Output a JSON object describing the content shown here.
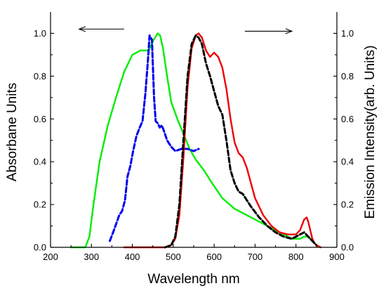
{
  "chart_data": {
    "type": "line",
    "xlabel": "Wavelength nm",
    "ylabel_left": "Absorbane Units",
    "ylabel_right": "Emission  Intensity(arb. Units)",
    "xlim": [
      200,
      900
    ],
    "ylim": [
      0.0,
      1.1
    ],
    "x_ticks": [
      "200",
      "300",
      "400",
      "500",
      "600",
      "700",
      "800",
      "900"
    ],
    "y_ticks_left": [
      "0.0",
      "0.2",
      "0.4",
      "0.6",
      "0.8",
      "1.0"
    ],
    "y_ticks_right": [
      "0.0",
      "0.2",
      "0.4",
      "0.6",
      "0.8",
      "1.0"
    ],
    "grid": false,
    "legend": "none",
    "annotations": [
      {
        "type": "arrow",
        "direction": "left",
        "x_from": 380,
        "x_to": 270,
        "y": 1.02
      },
      {
        "type": "arrow",
        "direction": "right",
        "x_from": 675,
        "x_to": 790,
        "y": 1.01
      }
    ],
    "series": [
      {
        "color": "#00ee00",
        "style": "solid",
        "axis": "left",
        "x": [
          250,
          285,
          295,
          305,
          320,
          340,
          360,
          380,
          400,
          420,
          440,
          452,
          462,
          468,
          475,
          485,
          495,
          510,
          525,
          540,
          555,
          575,
          595,
          620,
          650,
          680,
          710,
          740,
          770,
          790,
          800,
          810,
          820,
          830,
          840,
          850,
          860
        ],
        "y": [
          0.0,
          0.0,
          0.05,
          0.2,
          0.4,
          0.57,
          0.7,
          0.82,
          0.9,
          0.92,
          0.92,
          0.97,
          1.0,
          0.99,
          0.93,
          0.8,
          0.68,
          0.6,
          0.53,
          0.46,
          0.41,
          0.36,
          0.3,
          0.23,
          0.18,
          0.15,
          0.12,
          0.09,
          0.06,
          0.04,
          0.04,
          0.04,
          0.05,
          0.05,
          0.03,
          0.01,
          0.0
        ]
      },
      {
        "color": "#0000ee",
        "style": "dashed",
        "axis": "left",
        "x": [
          345,
          355,
          368,
          375,
          382,
          388,
          395,
          402,
          410,
          418,
          425,
          432,
          438,
          442,
          448,
          453,
          457,
          462,
          467,
          472,
          478,
          485,
          495,
          505,
          520,
          535,
          550,
          562
        ],
        "y": [
          0.03,
          0.08,
          0.15,
          0.17,
          0.22,
          0.33,
          0.38,
          0.45,
          0.52,
          0.56,
          0.59,
          0.72,
          0.87,
          0.99,
          0.97,
          0.7,
          0.59,
          0.58,
          0.56,
          0.57,
          0.54,
          0.5,
          0.47,
          0.45,
          0.46,
          0.46,
          0.45,
          0.46
        ]
      },
      {
        "color": "#ee0000",
        "style": "solid",
        "axis": "right",
        "x": [
          380,
          440,
          480,
          495,
          505,
          515,
          525,
          535,
          545,
          555,
          562,
          570,
          580,
          590,
          600,
          610,
          620,
          630,
          640,
          650,
          660,
          670,
          680,
          700,
          720,
          740,
          760,
          780,
          800,
          810,
          820,
          826,
          830,
          835,
          840,
          845,
          850,
          860
        ],
        "y": [
          0.0,
          0.0,
          0.0,
          0.01,
          0.04,
          0.15,
          0.42,
          0.75,
          0.93,
          0.99,
          1.0,
          0.98,
          0.92,
          0.89,
          0.91,
          0.89,
          0.84,
          0.74,
          0.6,
          0.49,
          0.44,
          0.42,
          0.37,
          0.23,
          0.15,
          0.1,
          0.07,
          0.06,
          0.06,
          0.08,
          0.13,
          0.14,
          0.12,
          0.08,
          0.04,
          0.02,
          0.01,
          0.0
        ]
      },
      {
        "color": "#000000",
        "style": "dashed",
        "axis": "right",
        "x": [
          480,
          495,
          505,
          515,
          525,
          535,
          545,
          555,
          562,
          570,
          580,
          590,
          600,
          610,
          620,
          630,
          640,
          650,
          660,
          670,
          690,
          710,
          730,
          750,
          770,
          790,
          800,
          810,
          820,
          825,
          830,
          840,
          850
        ],
        "y": [
          0.0,
          0.01,
          0.05,
          0.2,
          0.5,
          0.8,
          0.95,
          0.99,
          0.98,
          0.95,
          0.86,
          0.8,
          0.73,
          0.66,
          0.62,
          0.5,
          0.36,
          0.3,
          0.26,
          0.25,
          0.19,
          0.14,
          0.1,
          0.07,
          0.05,
          0.04,
          0.05,
          0.06,
          0.07,
          0.06,
          0.05,
          0.03,
          0.01
        ]
      }
    ]
  }
}
